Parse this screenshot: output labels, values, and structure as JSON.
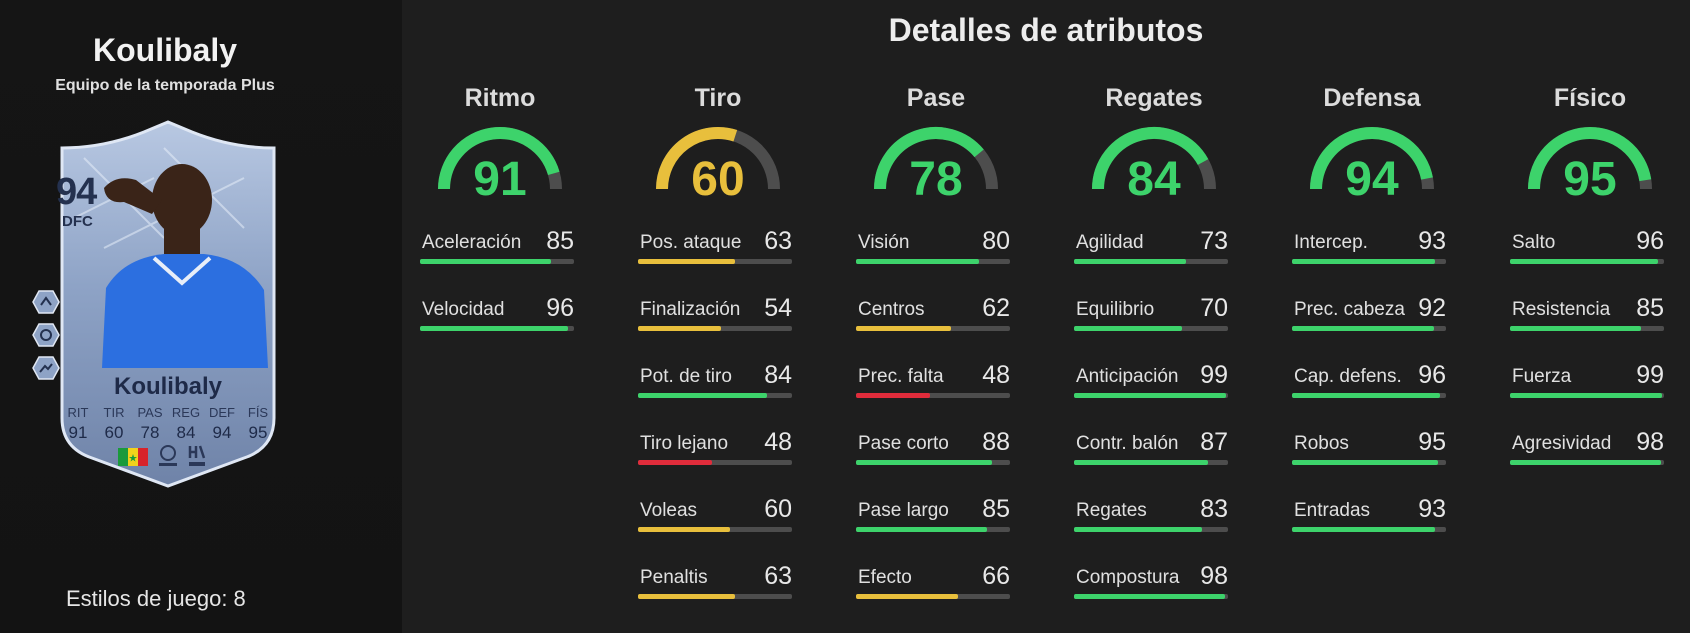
{
  "player": {
    "name": "Koulibaly",
    "card_type": "Equipo de la temporada Plus",
    "playstyles_label": "Estilos de juego: 8"
  },
  "card": {
    "rating": "94",
    "position": "DFC",
    "name": "Koulibaly",
    "stats": [
      {
        "label": "RIT",
        "value": "91"
      },
      {
        "label": "TIR",
        "value": "60"
      },
      {
        "label": "PAS",
        "value": "78"
      },
      {
        "label": "REG",
        "value": "84"
      },
      {
        "label": "DEF",
        "value": "94"
      },
      {
        "label": "FÍS",
        "value": "95"
      }
    ],
    "icons": [
      "playstyle-icon-1",
      "playstyle-icon-2",
      "playstyle-icon-3",
      "senegal-flag-icon",
      "league-logo-icon",
      "club-logo-icon"
    ]
  },
  "main_title": "Detalles de atributos",
  "colors": {
    "green": "#3dd36b",
    "yellow": "#e8bf3c",
    "red": "#e02c3b",
    "track": "#4d4d4d"
  },
  "categories": [
    {
      "name": "Ritmo",
      "value": 91,
      "attributes": [
        {
          "name": "Aceleración",
          "value": 85
        },
        {
          "name": "Velocidad",
          "value": 96
        }
      ]
    },
    {
      "name": "Tiro",
      "value": 60,
      "attributes": [
        {
          "name": "Pos. ataque",
          "value": 63
        },
        {
          "name": "Finalización",
          "value": 54
        },
        {
          "name": "Pot. de tiro",
          "value": 84
        },
        {
          "name": "Tiro lejano",
          "value": 48
        },
        {
          "name": "Voleas",
          "value": 60
        },
        {
          "name": "Penaltis",
          "value": 63
        }
      ]
    },
    {
      "name": "Pase",
      "value": 78,
      "attributes": [
        {
          "name": "Visión",
          "value": 80
        },
        {
          "name": "Centros",
          "value": 62
        },
        {
          "name": "Prec. falta",
          "value": 48
        },
        {
          "name": "Pase corto",
          "value": 88
        },
        {
          "name": "Pase largo",
          "value": 85
        },
        {
          "name": "Efecto",
          "value": 66
        }
      ]
    },
    {
      "name": "Regates",
      "value": 84,
      "attributes": [
        {
          "name": "Agilidad",
          "value": 73
        },
        {
          "name": "Equilibrio",
          "value": 70
        },
        {
          "name": "Anticipación",
          "value": 99
        },
        {
          "name": "Contr. balón",
          "value": 87
        },
        {
          "name": "Regates",
          "value": 83
        },
        {
          "name": "Compostura",
          "value": 98
        }
      ]
    },
    {
      "name": "Defensa",
      "value": 94,
      "attributes": [
        {
          "name": "Intercep.",
          "value": 93
        },
        {
          "name": "Prec. cabeza",
          "value": 92
        },
        {
          "name": "Cap. defens.",
          "value": 96
        },
        {
          "name": "Robos",
          "value": 95
        },
        {
          "name": "Entradas",
          "value": 93
        }
      ]
    },
    {
      "name": "Físico",
      "value": 95,
      "attributes": [
        {
          "name": "Salto",
          "value": 96
        },
        {
          "name": "Resistencia",
          "value": 85
        },
        {
          "name": "Fuerza",
          "value": 99
        },
        {
          "name": "Agresividad",
          "value": 98
        }
      ]
    }
  ]
}
